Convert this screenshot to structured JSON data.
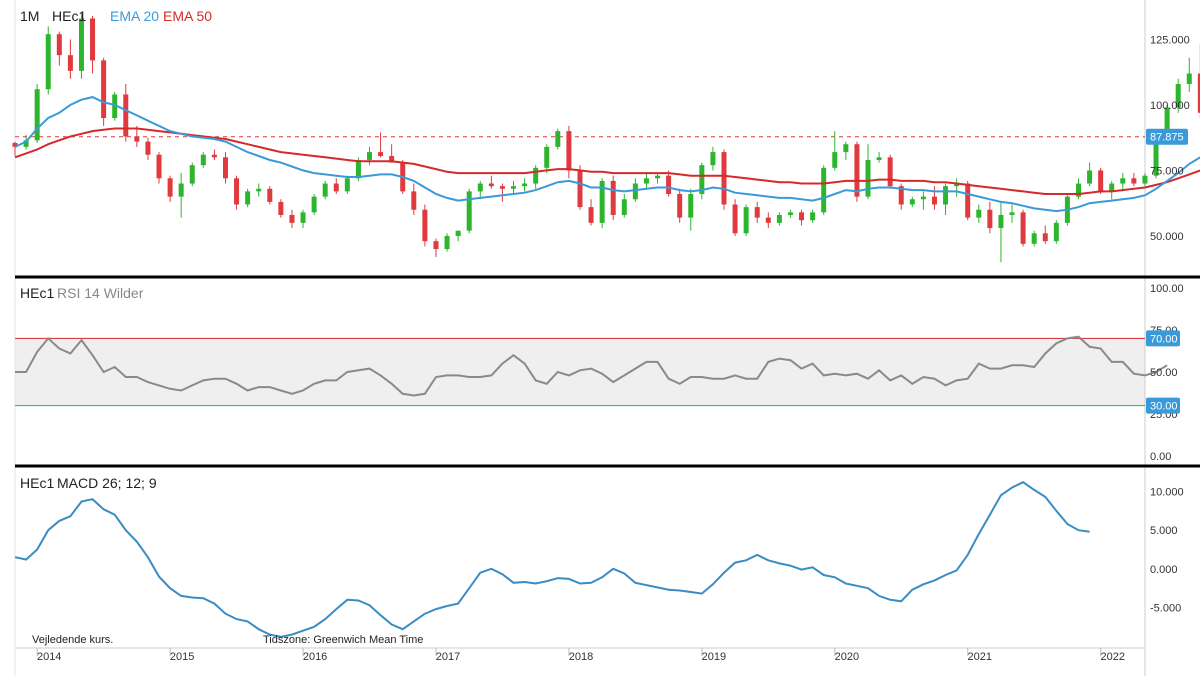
{
  "chart_data": [
    {
      "type": "candlestick",
      "panel": "price",
      "interval_label": "1M",
      "symbol_label": "HEc1",
      "ema_fast_label": "EMA 20",
      "ema_slow_label": "EMA 50",
      "ylim": [
        37,
        137
      ],
      "yticks": [
        50.0,
        75.0,
        100.0,
        125.0
      ],
      "ytick_labels": [
        "50.000",
        "75.000",
        "100.000",
        "125.000"
      ],
      "last_price": 87.875,
      "last_price_label": "87.875",
      "x_start": 2013.833,
      "x_step": 0.08333,
      "candles": [
        [
          85.5,
          86.0,
          80.5,
          84.0
        ],
        [
          84.0,
          88.5,
          83.0,
          86.5
        ],
        [
          86.5,
          108.0,
          85.5,
          106.0
        ],
        [
          106.0,
          130.0,
          104.0,
          127.0
        ],
        [
          127.0,
          128.0,
          115.0,
          119.0
        ],
        [
          119.0,
          125.0,
          110.0,
          113.0
        ],
        [
          113.0,
          135.0,
          110.0,
          133.0
        ],
        [
          133.0,
          134.0,
          112.0,
          117.0
        ],
        [
          117.0,
          118.0,
          92.0,
          95.0
        ],
        [
          95.0,
          105.0,
          94.0,
          104.0
        ],
        [
          104.0,
          108.0,
          86.0,
          88.0
        ],
        [
          88.0,
          92.0,
          84.0,
          86.0
        ],
        [
          86.0,
          87.5,
          79.0,
          81.0
        ],
        [
          81.0,
          82.0,
          70.0,
          72.0
        ],
        [
          72.0,
          73.0,
          63.0,
          65.0
        ],
        [
          65.0,
          74.0,
          57.0,
          70.0
        ],
        [
          70.0,
          78.0,
          69.0,
          77.0
        ],
        [
          77.0,
          82.0,
          76.0,
          81.0
        ],
        [
          81.0,
          83.0,
          79.0,
          80.0
        ],
        [
          80.0,
          82.0,
          70.0,
          72.0
        ],
        [
          72.0,
          73.0,
          60.0,
          62.0
        ],
        [
          62.0,
          68.0,
          61.0,
          67.0
        ],
        [
          67.0,
          70.0,
          65.0,
          68.0
        ],
        [
          68.0,
          69.0,
          62.0,
          63.0
        ],
        [
          63.0,
          64.0,
          57.0,
          58.0
        ],
        [
          58.0,
          60.0,
          53.0,
          55.0
        ],
        [
          55.0,
          60.0,
          53.0,
          59.0
        ],
        [
          59.0,
          66.0,
          58.0,
          65.0
        ],
        [
          65.0,
          71.0,
          64.0,
          70.0
        ],
        [
          70.0,
          72.0,
          66.0,
          67.0
        ],
        [
          67.0,
          73.0,
          66.0,
          72.0
        ],
        [
          72.0,
          80.0,
          71.0,
          79.0
        ],
        [
          79.0,
          84.0,
          77.0,
          82.0
        ],
        [
          82.0,
          89.5,
          80.0,
          80.5
        ],
        [
          80.5,
          85.0,
          78.0,
          78.0
        ],
        [
          78.0,
          79.0,
          66.0,
          67.0
        ],
        [
          67.0,
          70.0,
          58.0,
          60.0
        ],
        [
          60.0,
          62.0,
          46.0,
          48.0
        ],
        [
          48.0,
          49.0,
          42.0,
          45.0
        ],
        [
          45.0,
          51.0,
          44.0,
          50.0
        ],
        [
          50.0,
          52.0,
          48.0,
          52.0
        ],
        [
          52.0,
          68.0,
          51.0,
          67.0
        ],
        [
          67.0,
          71.0,
          64.0,
          70.0
        ],
        [
          70.0,
          73.0,
          68.0,
          69.0
        ],
        [
          69.0,
          70.0,
          63.0,
          68.0
        ],
        [
          68.0,
          71.0,
          66.0,
          69.0
        ],
        [
          69.0,
          72.0,
          67.0,
          70.0
        ],
        [
          70.0,
          77.0,
          68.0,
          76.0
        ],
        [
          76.0,
          85.0,
          74.0,
          84.0
        ],
        [
          84.0,
          91.0,
          83.0,
          90.0
        ],
        [
          90.0,
          92.0,
          72.0,
          75.0
        ],
        [
          75.0,
          77.0,
          60.0,
          61.0
        ],
        [
          61.0,
          64.0,
          54.0,
          55.0
        ],
        [
          55.0,
          72.0,
          53.0,
          71.0
        ],
        [
          71.0,
          73.0,
          56.0,
          58.0
        ],
        [
          58.0,
          66.0,
          57.0,
          64.0
        ],
        [
          64.0,
          72.0,
          63.0,
          70.0
        ],
        [
          70.0,
          74.0,
          68.0,
          72.0
        ],
        [
          72.0,
          74.0,
          70.0,
          73.0
        ],
        [
          73.0,
          75.0,
          65.0,
          66.0
        ],
        [
          66.0,
          68.0,
          55.0,
          57.0
        ],
        [
          57.0,
          68.0,
          52.0,
          66.0
        ],
        [
          66.0,
          78.0,
          64.0,
          77.0
        ],
        [
          77.0,
          84.0,
          75.0,
          82.0
        ],
        [
          82.0,
          83.0,
          60.0,
          62.0
        ],
        [
          62.0,
          64.0,
          50.0,
          51.0
        ],
        [
          51.0,
          62.0,
          50.0,
          61.0
        ],
        [
          61.0,
          63.0,
          55.0,
          57.0
        ],
        [
          57.0,
          59.0,
          53.0,
          55.0
        ],
        [
          55.0,
          59.0,
          54.0,
          58.0
        ],
        [
          58.0,
          60.0,
          57.0,
          59.0
        ],
        [
          59.0,
          60.0,
          54.0,
          56.0
        ],
        [
          56.0,
          60.0,
          55.0,
          59.0
        ],
        [
          59.0,
          77.0,
          58.0,
          76.0
        ],
        [
          76.0,
          90.0,
          75.0,
          82.0
        ],
        [
          82.0,
          86.0,
          79.0,
          85.0
        ],
        [
          85.0,
          86.0,
          63.0,
          65.0
        ],
        [
          65.0,
          85.0,
          64.0,
          79.0
        ],
        [
          79.0,
          82.0,
          78.0,
          80.0
        ],
        [
          80.0,
          81.0,
          68.0,
          69.0
        ],
        [
          69.0,
          70.0,
          60.0,
          62.0
        ],
        [
          62.0,
          65.0,
          61.0,
          64.0
        ],
        [
          64.0,
          67.0,
          60.0,
          65.0
        ],
        [
          65.0,
          69.0,
          60.0,
          62.0
        ],
        [
          62.0,
          70.0,
          58.0,
          69.0
        ],
        [
          69.0,
          72.0,
          65.0,
          70.0
        ],
        [
          70.0,
          71.0,
          56.0,
          57.0
        ],
        [
          57.0,
          62.0,
          55.0,
          60.0
        ],
        [
          60.0,
          63.0,
          51.0,
          53.0
        ],
        [
          53.0,
          63.0,
          40.0,
          58.0
        ],
        [
          58.0,
          62.0,
          55.0,
          59.0
        ],
        [
          59.0,
          60.0,
          46.0,
          47.0
        ],
        [
          47.0,
          52.0,
          46.0,
          51.0
        ],
        [
          51.0,
          54.0,
          47.0,
          48.0
        ],
        [
          48.0,
          56.0,
          47.0,
          55.0
        ],
        [
          55.0,
          66.0,
          54.0,
          65.0
        ],
        [
          65.0,
          72.0,
          64.0,
          70.0
        ],
        [
          70.0,
          78.0,
          69.0,
          75.0
        ],
        [
          75.0,
          76.0,
          66.0,
          67.0
        ],
        [
          67.0,
          71.0,
          64.0,
          70.0
        ],
        [
          70.0,
          74.0,
          67.0,
          72.0
        ],
        [
          72.0,
          74.0,
          69.0,
          70.0
        ],
        [
          70.0,
          74.0,
          69.0,
          73.0
        ],
        [
          73.0,
          90.0,
          72.0,
          89.0
        ],
        [
          89.0,
          100.0,
          87.0,
          99.0
        ],
        [
          99.0,
          110.0,
          97.0,
          108.0
        ],
        [
          108.0,
          118.0,
          105.0,
          112.0
        ],
        [
          112.0,
          123.0,
          95.0,
          97.0
        ],
        [
          97.0,
          110.0,
          96.0,
          106.0
        ],
        [
          106.0,
          108.0,
          102.0,
          104.0
        ],
        [
          104.0,
          105.0,
          87.0,
          88.0
        ],
        [
          88.0,
          92.0,
          86.0,
          91.0
        ],
        [
          91.0,
          93.0,
          72.0,
          74.0
        ],
        [
          74.0,
          78.0,
          72.0,
          77.0
        ],
        [
          77.0,
          79.0,
          71.0,
          76.0
        ],
        [
          76.0,
          90.0,
          74.0,
          87.875
        ]
      ],
      "ema20": [
        84.0,
        86.0,
        91.0,
        95.0,
        97.0,
        100.0,
        102.0,
        103.0,
        101.0,
        100.0,
        98.0,
        96.0,
        94.0,
        92.0,
        90.0,
        89.0,
        88.0,
        87.5,
        87.0,
        86.0,
        84.0,
        82.0,
        80.5,
        79.0,
        78.0,
        76.5,
        75.0,
        74.0,
        73.5,
        73.0,
        72.5,
        72.5,
        73.0,
        73.5,
        73.5,
        72.5,
        71.0,
        68.5,
        66.0,
        64.5,
        63.5,
        64.0,
        64.5,
        65.0,
        65.5,
        66.0,
        66.5,
        67.5,
        69.0,
        70.5,
        71.0,
        70.0,
        68.5,
        68.5,
        67.5,
        67.0,
        67.5,
        68.0,
        68.5,
        68.5,
        67.5,
        67.0,
        67.5,
        68.5,
        68.0,
        66.5,
        66.0,
        65.5,
        65.0,
        64.5,
        64.5,
        64.0,
        63.5,
        64.5,
        66.0,
        67.5,
        67.0,
        68.0,
        68.5,
        68.5,
        68.0,
        67.5,
        67.5,
        67.0,
        67.0,
        67.0,
        66.0,
        65.0,
        64.0,
        63.0,
        62.5,
        61.5,
        60.5,
        60.0,
        59.5,
        60.0,
        61.0,
        62.5,
        63.0,
        63.5,
        64.0,
        64.5,
        65.5,
        68.0,
        71.0,
        74.0,
        77.5,
        80.0,
        81.5,
        82.5,
        83.0,
        83.5,
        82.5,
        81.5,
        81.0,
        81.5
      ],
      "ema50": [
        80.0,
        81.5,
        83.0,
        85.0,
        86.5,
        88.0,
        89.0,
        90.0,
        90.5,
        91.0,
        91.0,
        91.0,
        90.5,
        90.0,
        89.5,
        89.0,
        88.5,
        88.0,
        87.5,
        87.0,
        86.0,
        85.0,
        84.0,
        83.0,
        82.0,
        81.5,
        81.0,
        80.5,
        80.0,
        79.5,
        79.0,
        78.5,
        78.5,
        78.5,
        78.5,
        78.0,
        77.5,
        76.5,
        75.5,
        74.5,
        74.0,
        74.0,
        74.0,
        74.0,
        74.0,
        74.0,
        74.0,
        74.5,
        75.0,
        75.5,
        75.5,
        75.0,
        74.5,
        74.5,
        74.0,
        74.0,
        74.0,
        74.0,
        74.0,
        74.0,
        73.5,
        73.0,
        73.0,
        73.0,
        73.0,
        72.5,
        72.0,
        71.5,
        71.0,
        70.5,
        70.5,
        70.0,
        70.0,
        70.0,
        70.5,
        71.0,
        71.0,
        71.0,
        71.5,
        71.5,
        71.0,
        71.0,
        71.0,
        70.5,
        70.5,
        70.0,
        69.5,
        69.0,
        68.5,
        68.0,
        67.5,
        67.0,
        66.5,
        66.0,
        66.0,
        66.0,
        66.0,
        66.5,
        67.0,
        67.0,
        67.5,
        68.0,
        68.5,
        69.5,
        70.5,
        72.0,
        73.5,
        75.0,
        76.0,
        76.5,
        77.0,
        77.5,
        77.5,
        77.0,
        76.5,
        76.5
      ]
    },
    {
      "type": "line",
      "panel": "rsi",
      "symbol_label": "HEc1",
      "indicator_label": "RSI 14 Wilder",
      "ylim": [
        0,
        100
      ],
      "yticks": [
        0,
        25,
        50,
        75,
        100
      ],
      "ytick_labels": [
        "0.00",
        "25.00",
        "50.00",
        "75.00",
        "100.00"
      ],
      "overbought": 70,
      "oversold": 30,
      "overbought_label": "70.00",
      "oversold_label": "30.00",
      "x_start": 2013.833,
      "x_step": 0.08333,
      "values": [
        50,
        50,
        62,
        70,
        64,
        61,
        69,
        60,
        50,
        53,
        47,
        47,
        44,
        42,
        40,
        39,
        42,
        45,
        46,
        46,
        43,
        39,
        41,
        41,
        39,
        37,
        39,
        43,
        45,
        45,
        50,
        51,
        52,
        48,
        43,
        37,
        36,
        37,
        47,
        48,
        48,
        47,
        47,
        48,
        55,
        60,
        55,
        45,
        43,
        50,
        48,
        51,
        52,
        49,
        44,
        48,
        52,
        56,
        56,
        46,
        43,
        47,
        47,
        46,
        46,
        48,
        46,
        46,
        56,
        58,
        57,
        52,
        55,
        48,
        49,
        48,
        49,
        46,
        51,
        45,
        48,
        43,
        47,
        46,
        42,
        45,
        46,
        55,
        52,
        52,
        54,
        54,
        53,
        61,
        67,
        70,
        71,
        65,
        64,
        56,
        56,
        49,
        48,
        50,
        54
      ]
    },
    {
      "type": "line",
      "panel": "macd",
      "symbol_label": "HEc1",
      "indicator_label": "MACD 26; 12; 9",
      "ylim": [
        -9.2,
        12.0
      ],
      "yticks": [
        -5.0,
        0.0,
        5.0,
        10.0
      ],
      "ytick_labels": [
        "-5.000",
        "0.000",
        "5.000",
        "10.000"
      ],
      "x_start": 2013.833,
      "x_step": 0.08333,
      "values": [
        1.5,
        1.2,
        2.5,
        5.0,
        6.2,
        6.8,
        8.7,
        9.0,
        7.7,
        7.0,
        5.0,
        3.5,
        1.5,
        -1.0,
        -2.5,
        -3.5,
        -3.7,
        -3.8,
        -4.5,
        -5.8,
        -6.5,
        -6.8,
        -7.8,
        -8.5,
        -8.8,
        -8.5,
        -8.0,
        -7.5,
        -6.5,
        -5.2,
        -4.0,
        -4.1,
        -4.7,
        -6.0,
        -7.2,
        -7.8,
        -6.8,
        -5.8,
        -5.2,
        -4.8,
        -4.5,
        -2.5,
        -0.5,
        0.0,
        -0.7,
        -1.8,
        -1.7,
        -1.9,
        -1.6,
        -1.2,
        -1.3,
        -1.9,
        -1.8,
        -1.1,
        0.0,
        -0.6,
        -1.8,
        -2.1,
        -2.4,
        -2.7,
        -2.8,
        -3.0,
        -3.2,
        -2.0,
        -0.5,
        0.8,
        1.1,
        1.8,
        1.1,
        0.7,
        0.4,
        -0.1,
        0.2,
        -0.8,
        -1.1,
        -1.9,
        -2.2,
        -2.5,
        -3.5,
        -4.0,
        -4.2,
        -2.7,
        -2.0,
        -1.5,
        -0.8,
        -0.2,
        1.8,
        4.5,
        7.0,
        9.5,
        10.5,
        11.2,
        10.2,
        9.3,
        7.5,
        5.8,
        5.0,
        4.8
      ]
    }
  ],
  "x_axis": {
    "tick_labels": [
      "2014",
      "2015",
      "2016",
      "2017",
      "2018",
      "2019",
      "2020",
      "2021",
      "2022"
    ],
    "tick_values": [
      2014,
      2015,
      2016,
      2017,
      2018,
      2019,
      2020,
      2021,
      2022
    ]
  },
  "footer": {
    "disclaimer": "Vejledende kurs.",
    "timezone": "Tidszone: Greenwich Mean Time"
  },
  "colors": {
    "up": "#2db52d",
    "down": "#e0393e",
    "ema20": "#3a9ad9",
    "ema50": "#d42a2a",
    "rsi": "#8a8a8a",
    "macd": "#3a8cc4",
    "badge": "#3a9ad9"
  }
}
